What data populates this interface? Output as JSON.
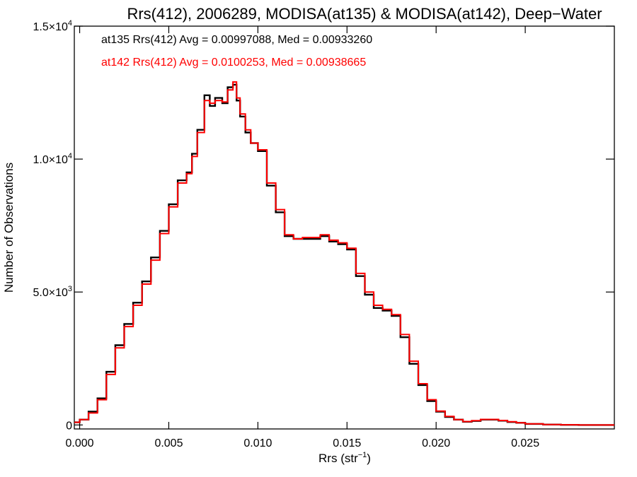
{
  "chart_data": {
    "type": "line",
    "title": "Rrs(412), 2006289, MODISA(at135) & MODISA(at142), Deep−Water",
    "xlabel": "Rrs (str",
    "xlabel_sup": "−1",
    "xlabel_close": ")",
    "ylabel": "Number of Observations",
    "xlim": [
      -0.0003,
      0.03
    ],
    "ylim": [
      -150,
      15000
    ],
    "xticks": [
      {
        "value": 0.0,
        "label": "0.000"
      },
      {
        "value": 0.005,
        "label": "0.005"
      },
      {
        "value": 0.01,
        "label": "0.010"
      },
      {
        "value": 0.015,
        "label": "0.015"
      },
      {
        "value": 0.02,
        "label": "0.020"
      },
      {
        "value": 0.025,
        "label": "0.025"
      }
    ],
    "yticks": [
      {
        "value": 0,
        "label": "0"
      },
      {
        "value": 5000,
        "label": "5.0×10",
        "exp": "3"
      },
      {
        "value": 10000,
        "label": "1.0×10",
        "exp": "4"
      },
      {
        "value": 15000,
        "label": "1.5×10",
        "exp": "4"
      }
    ],
    "grid": false,
    "annotations": [
      {
        "text": "at135 Rrs(412) Avg = 0.00997088, Med = 0.00933260",
        "color": "#000000"
      },
      {
        "text": "at142 Rrs(412) Avg = 0.0100253, Med = 0.00938665",
        "color": "#ff0000"
      }
    ],
    "series": [
      {
        "name": "at135",
        "color": "#000000",
        "x": [
          -0.0003,
          0.0,
          0.0005,
          0.001,
          0.0015,
          0.002,
          0.0025,
          0.003,
          0.0035,
          0.004,
          0.0045,
          0.005,
          0.0055,
          0.006,
          0.0063,
          0.0066,
          0.007,
          0.0073,
          0.0076,
          0.008,
          0.0083,
          0.0086,
          0.0088,
          0.009,
          0.0093,
          0.0096,
          0.01,
          0.0105,
          0.011,
          0.0115,
          0.012,
          0.0125,
          0.013,
          0.0135,
          0.014,
          0.0145,
          0.015,
          0.0155,
          0.016,
          0.0165,
          0.017,
          0.0175,
          0.018,
          0.0185,
          0.019,
          0.0195,
          0.02,
          0.0205,
          0.021,
          0.0215,
          0.022,
          0.0225,
          0.023,
          0.0235,
          0.024,
          0.0245,
          0.025,
          0.026,
          0.027,
          0.028,
          0.03
        ],
        "y": [
          100,
          200,
          500,
          1000,
          2000,
          3000,
          3800,
          4600,
          5400,
          6300,
          7300,
          8300,
          9200,
          9500,
          10200,
          11100,
          12400,
          12000,
          12300,
          12100,
          12700,
          12800,
          12200,
          11600,
          11000,
          10600,
          10300,
          9000,
          8000,
          7100,
          7000,
          7000,
          7000,
          7100,
          6900,
          6800,
          6600,
          5600,
          4900,
          4400,
          4300,
          4100,
          3300,
          2300,
          1500,
          900,
          500,
          300,
          200,
          120,
          150,
          200,
          200,
          160,
          110,
          80,
          40,
          15,
          5,
          0,
          0
        ]
      },
      {
        "name": "at142",
        "color": "#ff0000",
        "x": [
          -0.0003,
          0.0,
          0.0005,
          0.001,
          0.0015,
          0.002,
          0.0025,
          0.003,
          0.0035,
          0.004,
          0.0045,
          0.005,
          0.0055,
          0.006,
          0.0063,
          0.0066,
          0.007,
          0.0073,
          0.0076,
          0.008,
          0.0083,
          0.0086,
          0.0088,
          0.009,
          0.0093,
          0.0096,
          0.01,
          0.0105,
          0.011,
          0.0115,
          0.012,
          0.0125,
          0.013,
          0.0135,
          0.014,
          0.0145,
          0.015,
          0.0155,
          0.016,
          0.0165,
          0.017,
          0.0175,
          0.018,
          0.0185,
          0.019,
          0.0195,
          0.02,
          0.0205,
          0.021,
          0.0215,
          0.022,
          0.0225,
          0.023,
          0.0235,
          0.024,
          0.0245,
          0.025,
          0.026,
          0.027,
          0.028,
          0.03
        ],
        "y": [
          100,
          200,
          450,
          950,
          1900,
          2900,
          3700,
          4500,
          5300,
          6200,
          7200,
          8200,
          9100,
          9450,
          10100,
          11000,
          12200,
          12100,
          12200,
          12150,
          12600,
          12900,
          12300,
          11700,
          11100,
          10600,
          10350,
          9100,
          8100,
          7150,
          7000,
          7050,
          7050,
          7150,
          6950,
          6850,
          6650,
          5700,
          5000,
          4500,
          4350,
          4150,
          3400,
          2400,
          1550,
          950,
          520,
          320,
          200,
          130,
          160,
          210,
          210,
          170,
          120,
          85,
          45,
          18,
          6,
          0,
          0
        ]
      }
    ]
  }
}
